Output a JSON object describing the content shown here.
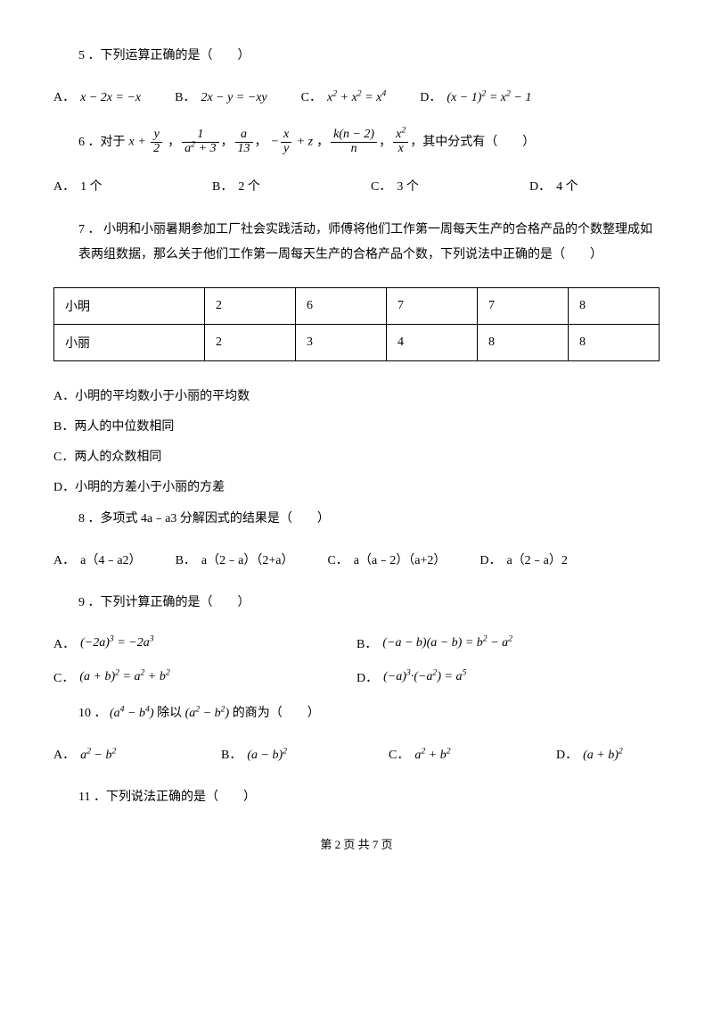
{
  "q5": {
    "text": "5 ．下列运算正确的是（　　）",
    "opts": {
      "A": {
        "lbl": "A．",
        "math": "x − 2x = −x"
      },
      "B": {
        "lbl": "B．",
        "math": "2x − y = −xy"
      },
      "C": {
        "lbl": "C．",
        "math_html": "x<sup>2</sup> + x<sup>2</sup> = x<sup>4</sup>"
      },
      "D": {
        "lbl": "D．",
        "math_html": "(x − 1)<sup>2</sup> = x<sup>2</sup> − 1"
      }
    }
  },
  "q6": {
    "prefix": "6 ．对于",
    "items": {
      "f1": {
        "num": "y",
        "den": "2",
        "pre": "x + "
      },
      "f2": {
        "num": "1",
        "den_html": "a<sup>2</sup> + 3"
      },
      "f3": {
        "num": "a",
        "den": "13"
      },
      "f4": {
        "num": "x",
        "den": "y",
        "pre": "−",
        "post": " + z"
      },
      "f5": {
        "num": "k(n − 2)",
        "den": "n"
      },
      "f6": {
        "num_html": "x<sup>2</sup>",
        "den": "x"
      }
    },
    "suffix": "，其中分式有（　　）",
    "opts": {
      "A": {
        "lbl": "A．",
        "txt": "1 个"
      },
      "B": {
        "lbl": "B．",
        "txt": "2 个"
      },
      "C": {
        "lbl": "C．",
        "txt": "3 个"
      },
      "D": {
        "lbl": "D．",
        "txt": "4 个"
      }
    }
  },
  "q7": {
    "text": "7 ．  小明和小丽暑期参加工厂社会实践活动，师傅将他们工作第一周每天生产的合格产品的个数整理成如表两组数据，那么关于他们工作第一周每天生产的合格产品个数，下列说法中正确的是（　　）",
    "table": {
      "rows": [
        [
          "小明",
          "2",
          "6",
          "7",
          "7",
          "8"
        ],
        [
          "小丽",
          "2",
          "3",
          "4",
          "8",
          "8"
        ]
      ]
    },
    "opts": {
      "A": "A．小明的平均数小于小丽的平均数",
      "B": "B．两人的中位数相同",
      "C": "C．两人的众数相同",
      "D": "D．小明的方差小于小丽的方差"
    }
  },
  "q8": {
    "text": "8 ．多项式 4a﹣a3 分解因式的结果是（　　）",
    "opts": {
      "A": {
        "lbl": "A．",
        "txt": "a（4﹣a2）"
      },
      "B": {
        "lbl": "B．",
        "txt": "a（2﹣a）（2+a）"
      },
      "C": {
        "lbl": "C．",
        "txt": "a（a﹣2）（a+2）"
      },
      "D": {
        "lbl": "D．",
        "txt": "a（2﹣a）2"
      }
    }
  },
  "q9": {
    "text": "9 ．下列计算正确的是（　　）",
    "opts": {
      "A": {
        "lbl": "A．",
        "math_html": "(−2a)<sup>3</sup> = −2a<sup>3</sup>"
      },
      "B": {
        "lbl": "B．",
        "math_html": "(−a − b)(a − b) = b<sup>2</sup> − a<sup>2</sup>"
      },
      "C": {
        "lbl": "C．",
        "math_html": "(a + b)<sup>2</sup> = a<sup>2</sup> + b<sup>2</sup>"
      },
      "D": {
        "lbl": "D．",
        "math_html": "(−a)<sup>3</sup>·(−a<sup>2</sup>) = a<sup>5</sup>"
      }
    }
  },
  "q10": {
    "prefix": "10 ．",
    "m1_html": "(a<sup>4</sup> − b<sup>4</sup>)",
    "mid1": "除以",
    "m2_html": "(a<sup>2</sup> − b<sup>2</sup>)",
    "suffix": "的商为（　　）",
    "opts": {
      "A": {
        "lbl": "A．",
        "math_html": "a<sup>2</sup> − b<sup>2</sup>"
      },
      "B": {
        "lbl": "B．",
        "math_html": "(a − b)<sup>2</sup>"
      },
      "C": {
        "lbl": "C．",
        "math_html": "a<sup>2</sup> + b<sup>2</sup>"
      },
      "D": {
        "lbl": "D．",
        "math_html": "(a + b)<sup>2</sup>"
      }
    }
  },
  "q11": {
    "text": "11 ．下列说法正确的是（　　）"
  },
  "footer": "第 2 页 共 7 页"
}
